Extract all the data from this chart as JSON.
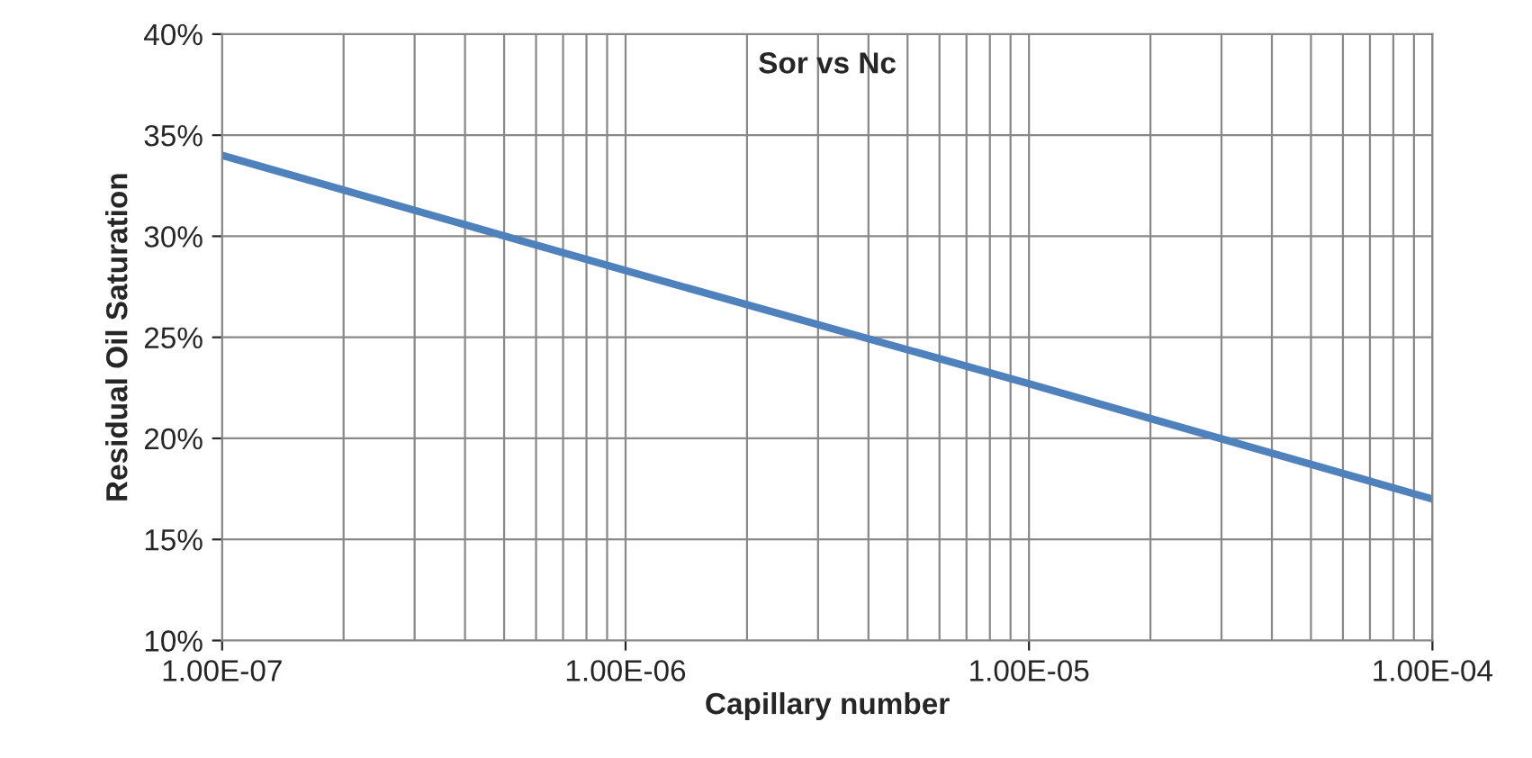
{
  "chart_data": {
    "type": "line",
    "title": "Sor vs Nc",
    "xlabel": "Capillary number",
    "ylabel": "Residual Oil Saturation",
    "x": [
      1e-07,
      1e-06,
      1e-05,
      0.0001
    ],
    "series": [
      {
        "color": "#4f81bd",
        "values": [
          34,
          28.3,
          22.7,
          17
        ]
      }
    ],
    "log": "x",
    "xlim": [
      1e-07,
      0.0001
    ],
    "xticks": [
      {
        "value": 1e-07,
        "label": "1.00E-07"
      },
      {
        "value": 1e-06,
        "label": "1.00E-06"
      },
      {
        "value": 1e-05,
        "label": "1.00E-05"
      },
      {
        "value": 0.0001,
        "label": "1.00E-04"
      }
    ],
    "ylim": [
      10,
      40
    ],
    "yticks": [
      {
        "value": 10,
        "label": "10%"
      },
      {
        "value": 15,
        "label": "15%"
      },
      {
        "value": 20,
        "label": "20%"
      },
      {
        "value": 25,
        "label": "25%"
      },
      {
        "value": 30,
        "label": "30%"
      },
      {
        "value": 35,
        "label": "35%"
      },
      {
        "value": 40,
        "label": "40%"
      }
    ],
    "grid": true,
    "marker": "none",
    "line_style": "solid"
  }
}
